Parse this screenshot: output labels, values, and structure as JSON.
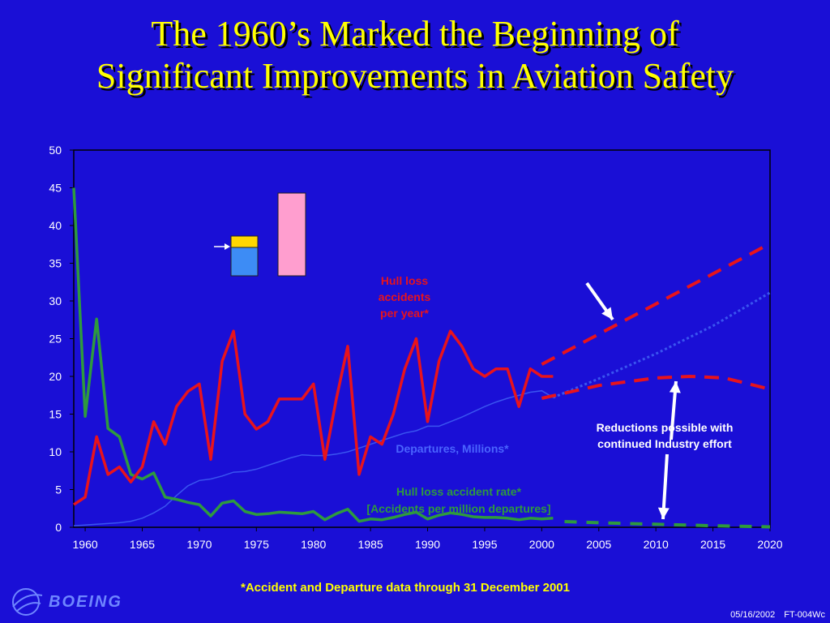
{
  "slide": {
    "title_line1": "The 1960’s Marked the Beginning of",
    "title_line2": "Significant Improvements in Aviation Safety",
    "footnote": "*Accident and Departure data through 31 December 2001",
    "logo_text": "BOEING",
    "date": "05/16/2002",
    "code": "FT-004Wc"
  },
  "colors": {
    "background": "#1a0fd6",
    "title": "#ffff00",
    "hull_loss_accidents": "#e8131c",
    "departures": "#3a55f0",
    "accident_rate": "#2e9a3e",
    "annotation_white": "#ffffff"
  },
  "chart_data": {
    "type": "line",
    "xlim": [
      1959,
      2020
    ],
    "ylim": [
      0,
      50
    ],
    "x_ticks": [
      1960,
      1965,
      1970,
      1975,
      1980,
      1985,
      1990,
      1995,
      2000,
      2005,
      2010,
      2015,
      2020
    ],
    "y_ticks": [
      0,
      5,
      10,
      15,
      20,
      25,
      30,
      35,
      40,
      45,
      50
    ],
    "grid": false,
    "series": [
      {
        "name": "Hull loss accidents per year*",
        "label_lines": [
          "Hull loss",
          "accidents",
          "per year*"
        ],
        "x": [
          1959,
          1960,
          1961,
          1962,
          1963,
          1964,
          1965,
          1966,
          1967,
          1968,
          1969,
          1970,
          1971,
          1972,
          1973,
          1974,
          1975,
          1976,
          1977,
          1978,
          1979,
          1980,
          1981,
          1982,
          1983,
          1984,
          1985,
          1986,
          1987,
          1988,
          1989,
          1990,
          1991,
          1992,
          1993,
          1994,
          1995,
          1996,
          1997,
          1998,
          1999,
          2000,
          2001
        ],
        "values": [
          3,
          4,
          12,
          7,
          8,
          6,
          8,
          14,
          11,
          16,
          18,
          19,
          9,
          22,
          26,
          15,
          13,
          14,
          17,
          17,
          17,
          19,
          9,
          17,
          24,
          7,
          12,
          11,
          15,
          21,
          25,
          14,
          22,
          26,
          24,
          21,
          20,
          21,
          21,
          16,
          21,
          20,
          20
        ]
      },
      {
        "name": "Departures, Millions*",
        "x": [
          1959,
          1960,
          1961,
          1962,
          1963,
          1964,
          1965,
          1966,
          1967,
          1968,
          1969,
          1970,
          1971,
          1972,
          1973,
          1974,
          1975,
          1976,
          1977,
          1978,
          1979,
          1980,
          1981,
          1982,
          1983,
          1984,
          1985,
          1986,
          1987,
          1988,
          1989,
          1990,
          1991,
          1992,
          1993,
          1994,
          1995,
          1996,
          1997,
          1998,
          1999,
          2000,
          2001
        ],
        "values": [
          0.2,
          0.3,
          0.4,
          0.5,
          0.6,
          0.8,
          1.2,
          1.9,
          2.8,
          4.2,
          5.5,
          6.2,
          6.4,
          6.8,
          7.3,
          7.4,
          7.7,
          8.2,
          8.7,
          9.2,
          9.6,
          9.5,
          9.5,
          9.7,
          10.0,
          10.5,
          11.0,
          11.5,
          12.0,
          12.5,
          12.8,
          13.4,
          13.4,
          14.0,
          14.6,
          15.3,
          16.0,
          16.6,
          17.1,
          17.5,
          17.9,
          18.1,
          17.2
        ]
      },
      {
        "name": "Hull loss accident rate*",
        "label_lines": [
          "Hull loss accident rate*",
          "[Accidents per million departures]"
        ],
        "x": [
          1959,
          1960,
          1961,
          1962,
          1963,
          1964,
          1965,
          1966,
          1967,
          1968,
          1969,
          1970,
          1971,
          1972,
          1973,
          1974,
          1975,
          1976,
          1977,
          1978,
          1979,
          1980,
          1981,
          1982,
          1983,
          1984,
          1985,
          1986,
          1987,
          1988,
          1989,
          1990,
          1991,
          1992,
          1993,
          1994,
          1995,
          1996,
          1997,
          1998,
          1999,
          2000,
          2001
        ],
        "values": [
          45,
          14.7,
          27.6,
          13.1,
          12,
          7,
          6.4,
          7.2,
          4,
          3.7,
          3.3,
          3,
          1.5,
          3.2,
          3.5,
          2.1,
          1.7,
          1.8,
          2,
          1.9,
          1.8,
          2.1,
          1,
          1.8,
          2.4,
          0.8,
          1.1,
          1,
          1.3,
          1.7,
          2,
          1.1,
          1.6,
          1.9,
          1.7,
          1.4,
          1.3,
          1.3,
          1.2,
          1,
          1.2,
          1.1,
          1.2
        ]
      }
    ],
    "projections": [
      {
        "name": "Hull loss accidents projection (current rate)",
        "x": [
          2000,
          2005,
          2010,
          2015,
          2020
        ],
        "values": [
          21.6,
          25.6,
          29.6,
          33.6,
          37.6
        ]
      },
      {
        "name": "Departures projection",
        "x": [
          2001,
          2005,
          2010,
          2015,
          2020
        ],
        "values": [
          17.2,
          19.7,
          23.0,
          26.7,
          31.1
        ]
      },
      {
        "name": "Hull loss accidents projection (reduced rate)",
        "x": [
          2000,
          2005,
          2010,
          2013,
          2016,
          2020
        ],
        "values": [
          17.1,
          18.8,
          19.8,
          20,
          19.8,
          18.3
        ]
      },
      {
        "name": "Accident rate projection",
        "x": [
          2002,
          2005,
          2010,
          2015,
          2020
        ],
        "values": [
          0.75,
          0.6,
          0.4,
          0.2,
          0.05
        ]
      }
    ],
    "annotations": {
      "departures_label": "Departures, Millions*",
      "reductions_line1": "Reductions possible with",
      "reductions_line2": "continued Industry effort"
    }
  }
}
